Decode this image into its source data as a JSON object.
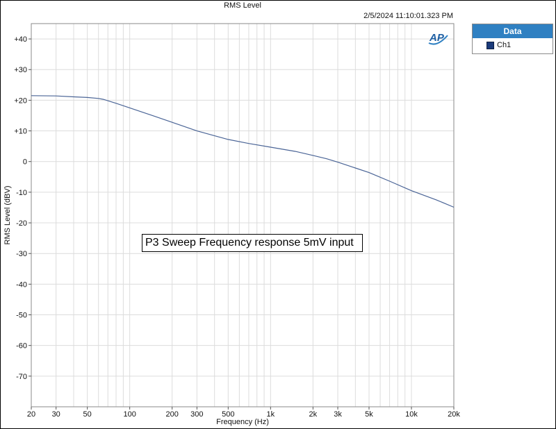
{
  "chart_data": {
    "type": "line",
    "title": "RMS Level",
    "timestamp": "2/5/2024 11:10:01.323 PM",
    "annotation": "P3 Sweep Frequency response 5mV input",
    "xlabel": "Frequency (Hz)",
    "ylabel": "RMS Level (dBV)",
    "x_scale": "log",
    "xlim": [
      20,
      20000
    ],
    "ylim": [
      -80,
      45
    ],
    "grid": true,
    "legend": {
      "title": "Data",
      "placement": "right"
    },
    "x_ticks": [
      {
        "value": 20,
        "label": "20"
      },
      {
        "value": 30,
        "label": "30"
      },
      {
        "value": 50,
        "label": "50"
      },
      {
        "value": 100,
        "label": "100"
      },
      {
        "value": 200,
        "label": "200"
      },
      {
        "value": 300,
        "label": "300"
      },
      {
        "value": 500,
        "label": "500"
      },
      {
        "value": 1000,
        "label": "1k"
      },
      {
        "value": 2000,
        "label": "2k"
      },
      {
        "value": 3000,
        "label": "3k"
      },
      {
        "value": 5000,
        "label": "5k"
      },
      {
        "value": 10000,
        "label": "10k"
      },
      {
        "value": 20000,
        "label": "20k"
      }
    ],
    "y_ticks": [
      {
        "value": 40,
        "label": "+40"
      },
      {
        "value": 30,
        "label": "+30"
      },
      {
        "value": 20,
        "label": "+20"
      },
      {
        "value": 10,
        "label": "+10"
      },
      {
        "value": 0,
        "label": "0"
      },
      {
        "value": -10,
        "label": "-10"
      },
      {
        "value": -20,
        "label": "-20"
      },
      {
        "value": -30,
        "label": "-30"
      },
      {
        "value": -40,
        "label": "-40"
      },
      {
        "value": -50,
        "label": "-50"
      },
      {
        "value": -60,
        "label": "-60"
      },
      {
        "value": -70,
        "label": "-70"
      }
    ],
    "series": [
      {
        "name": "Ch1",
        "color": "#4a6496",
        "x": [
          20,
          30,
          40,
          50,
          60,
          65,
          80,
          100,
          150,
          200,
          300,
          400,
          500,
          700,
          1000,
          1500,
          2000,
          2500,
          3000,
          4000,
          5000,
          7000,
          10000,
          15000,
          20000
        ],
        "y": [
          21.5,
          21.4,
          21.1,
          20.9,
          20.6,
          20.3,
          19.0,
          17.5,
          14.8,
          12.8,
          10.0,
          8.4,
          7.2,
          5.9,
          4.7,
          3.3,
          2.0,
          0.9,
          -0.2,
          -2.1,
          -3.6,
          -6.4,
          -9.5,
          -12.5,
          -14.9
        ]
      }
    ]
  },
  "logo": {
    "text": "AP"
  }
}
